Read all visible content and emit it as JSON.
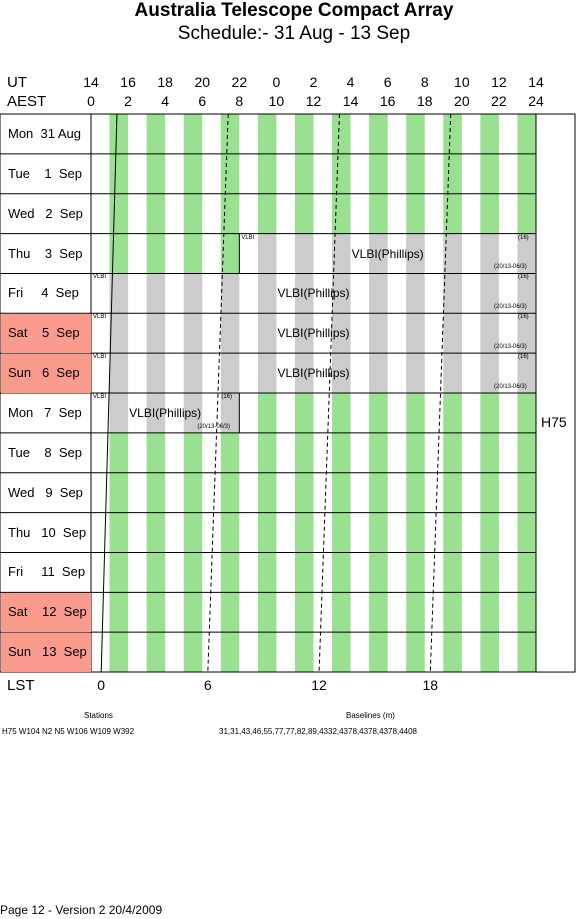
{
  "title": "Australia Telescope Compact Array",
  "subtitle": "Schedule:- 31 Aug - 13 Sep",
  "axes": {
    "ut_label": "UT",
    "aest_label": "AEST",
    "lst_label": "LST",
    "ut_ticks": [
      "14",
      "16",
      "18",
      "20",
      "22",
      "0",
      "2",
      "4",
      "6",
      "8",
      "10",
      "12",
      "14"
    ],
    "aest_ticks": [
      "0",
      "2",
      "4",
      "6",
      "8",
      "10",
      "12",
      "14",
      "16",
      "18",
      "20",
      "22",
      "24"
    ],
    "lst_ticks": [
      "0",
      "6",
      "12",
      "18"
    ]
  },
  "days": [
    {
      "label": "Mon  31 Aug",
      "weekend": false
    },
    {
      "label": "Tue    1  Sep",
      "weekend": false
    },
    {
      "label": "Wed   2  Sep",
      "weekend": false
    },
    {
      "label": "Thu    3  Sep",
      "weekend": false
    },
    {
      "label": "Fri     4  Sep",
      "weekend": false
    },
    {
      "label": "Sat    5  Sep",
      "weekend": true
    },
    {
      "label": "Sun   6  Sep",
      "weekend": true
    },
    {
      "label": "Mon   7  Sep",
      "weekend": false
    },
    {
      "label": "Tue    8  Sep",
      "weekend": false
    },
    {
      "label": "Wed   9  Sep",
      "weekend": false
    },
    {
      "label": "Thu   10  Sep",
      "weekend": false
    },
    {
      "label": "Fri     11  Sep",
      "weekend": false
    },
    {
      "label": "Sat    12  Sep",
      "weekend": true
    },
    {
      "label": "Sun   13  Sep",
      "weekend": true
    }
  ],
  "blocks": [
    {
      "day_index": 3,
      "start_hour": 8.0,
      "end_hour": 24.0,
      "main": "VLBI(Phillips)",
      "tag": "VLBI",
      "code": "(16)",
      "ref": "(20/13-06/3)"
    },
    {
      "day_index": 4,
      "start_hour": 0.0,
      "end_hour": 24.0,
      "main": "VLBI(Phillips)",
      "tag": "VLBI",
      "code": "(16)",
      "ref": "(20/13-06/3)"
    },
    {
      "day_index": 5,
      "start_hour": 0.0,
      "end_hour": 24.0,
      "main": "VLBI(Phillips)",
      "tag": "VLBI",
      "code": "(16)",
      "ref": "(20/13-06/3)"
    },
    {
      "day_index": 6,
      "start_hour": 0.0,
      "end_hour": 24.0,
      "main": "VLBI(Phillips)",
      "tag": "VLBI",
      "code": "(16)",
      "ref": "(20/13-06/3)"
    },
    {
      "day_index": 7,
      "start_hour": 0.0,
      "end_hour": 8.0,
      "main": "VLBI(Phillips)",
      "tag": "VLBI",
      "code": "(16)",
      "ref": "(20/13-06/3)"
    }
  ],
  "array_config": "H75",
  "stations_header": "Stations",
  "stations_value": "H75     W104  N2  N5  W106  W109  W392",
  "baselines_header": "Baselines (m)",
  "baselines_value": "31,31,43,46,55,77,77,82,89,4332,4378,4378,4378,4408",
  "footer": "Page 12 - Version 2  20/4/2009",
  "colors": {
    "green": "#99e090",
    "gray": "#cccccc",
    "weekend": "#fa9b8e"
  }
}
